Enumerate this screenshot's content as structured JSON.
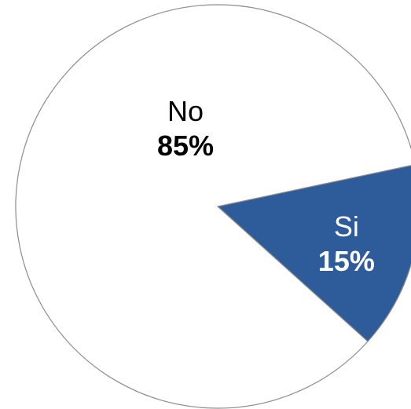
{
  "chart_data": {
    "type": "pie",
    "title": "",
    "start_angle_deg": 12,
    "slices": [
      {
        "label": "Si",
        "value": 15,
        "value_label": "15%",
        "fill": "#2E5C9A",
        "text_color": "#FFFFFF"
      },
      {
        "label": "No",
        "value": 85,
        "value_label": "85%",
        "fill": "#FFFFFF",
        "text_color": "#000000"
      }
    ],
    "outline_color": "#8C8C8C",
    "legend": "none"
  }
}
